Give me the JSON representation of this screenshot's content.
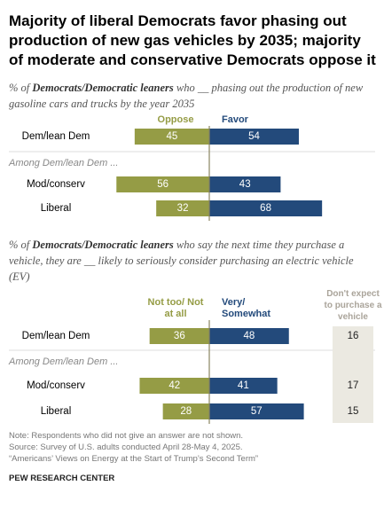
{
  "title": "Majority of liberal Democrats favor phasing out production of new gas vehicles by 2035; majority of moderate and conservative Democrats oppose it",
  "chart_data": [
    {
      "type": "diverging_bar",
      "subtitle": [
        "% of ",
        "Democrats/Democratic leaners",
        " who __ phasing out the production of new gasoline cars and trucks by the year 2035"
      ],
      "group_label": "Among Dem/lean Dem ...",
      "categories": [
        "Dem/lean Dem",
        "Mod/conserv",
        "Liberal"
      ],
      "series": [
        {
          "name": "Oppose",
          "color": "#959c45",
          "values": [
            45,
            56,
            32
          ]
        },
        {
          "name": "Favor",
          "color": "#234a7b",
          "values": [
            54,
            43,
            68
          ]
        }
      ]
    },
    {
      "type": "diverging_bar",
      "subtitle": [
        "% of ",
        "Democrats/Democratic leaners",
        " who say the next time they purchase a vehicle, they are __ likely to seriously consider purchasing an electric vehicle (EV)"
      ],
      "group_label": "Among Dem/lean Dem ...",
      "categories": [
        "Dem/lean Dem",
        "Mod/conserv",
        "Liberal"
      ],
      "series": [
        {
          "name": "Not too/ Not at all",
          "color": "#959c45",
          "values": [
            36,
            42,
            28
          ]
        },
        {
          "name": "Very/ Somewhat",
          "color": "#234a7b",
          "values": [
            48,
            41,
            57
          ]
        }
      ],
      "extra_column": {
        "name": "Don't expect to purchase a vehicle",
        "values": [
          16,
          17,
          15
        ]
      }
    }
  ],
  "notes": [
    "Note: Respondents who did not give an answer are not shown.",
    "Source: Survey of U.S. adults conducted April 28-May 4, 2025.",
    "“Americans’ Views on Energy at the Start of Trump’s Second Term”"
  ],
  "source": "PEW RESEARCH CENTER"
}
